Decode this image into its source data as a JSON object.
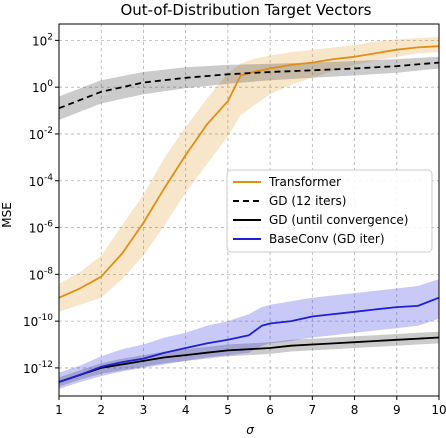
{
  "chart_data": {
    "type": "line",
    "title": "Out-of-Distribution Target Vectors",
    "xlabel": "σ",
    "ylabel": "MSE",
    "xlim": [
      1,
      10
    ],
    "ylim_log10": [
      -13.2,
      2.7
    ],
    "yscale": "log",
    "grid": true,
    "legend_position": "center-right",
    "x_ticks": [
      1,
      2,
      3,
      4,
      5,
      6,
      7,
      8,
      9,
      10
    ],
    "x_tick_labels": [
      "1",
      "2",
      "3",
      "4",
      "5",
      "6",
      "7",
      "8",
      "9",
      "10"
    ],
    "y_ticks_log10": [
      2,
      0,
      -2,
      -4,
      -6,
      -8,
      -10,
      -12
    ],
    "y_tick_labels": [
      {
        "base": "10",
        "exp": "2"
      },
      {
        "base": "10",
        "exp": "0"
      },
      {
        "base": "10",
        "exp": "-2"
      },
      {
        "base": "10",
        "exp": "-4"
      },
      {
        "base": "10",
        "exp": "-6"
      },
      {
        "base": "10",
        "exp": "-8"
      },
      {
        "base": "10",
        "exp": "-10"
      },
      {
        "base": "10",
        "exp": "-12"
      }
    ],
    "series": [
      {
        "name": "Transformer",
        "color": "#e08f12",
        "style": "solid",
        "x": [
          1.0,
          1.5,
          2.0,
          2.5,
          3.0,
          3.5,
          4.0,
          4.5,
          5.0,
          5.3,
          5.6,
          6.0,
          6.5,
          7.0,
          7.5,
          8.0,
          8.5,
          9.0,
          9.5,
          10.0
        ],
        "y_log10": [
          -9.0,
          -8.6,
          -8.1,
          -7.1,
          -5.8,
          -4.3,
          -2.9,
          -1.6,
          -0.6,
          0.5,
          0.65,
          0.8,
          0.95,
          1.05,
          1.2,
          1.3,
          1.45,
          1.6,
          1.7,
          1.75
        ],
        "band_low_log10": [
          -9.6,
          -9.3,
          -9.0,
          -8.2,
          -7.2,
          -5.9,
          -4.5,
          -3.3,
          -2.1,
          -1.2,
          -0.8,
          -0.3,
          0.1,
          0.4,
          0.7,
          0.95,
          1.15,
          1.3,
          1.45,
          1.5
        ],
        "band_high_log10": [
          -8.4,
          -7.9,
          -7.2,
          -5.9,
          -4.6,
          -3.0,
          -1.7,
          -0.5,
          0.6,
          1.0,
          1.2,
          1.35,
          1.5,
          1.6,
          1.7,
          1.8,
          1.95,
          2.05,
          2.1,
          2.15
        ]
      },
      {
        "name": "GD (12 iters)",
        "color": "#000000",
        "style": "dashed",
        "x": [
          1,
          2,
          3,
          4,
          5,
          6,
          7,
          8,
          9,
          10
        ],
        "y_log10": [
          -0.9,
          -0.2,
          0.2,
          0.4,
          0.55,
          0.65,
          0.72,
          0.8,
          0.9,
          1.05
        ],
        "band_low_log10": [
          -1.4,
          -0.7,
          -0.3,
          -0.05,
          0.15,
          0.3,
          0.4,
          0.5,
          0.62,
          0.8
        ],
        "band_high_log10": [
          -0.4,
          0.3,
          0.65,
          0.85,
          0.95,
          1.0,
          1.05,
          1.12,
          1.2,
          1.3
        ]
      },
      {
        "name": "GD (until convergence)",
        "color": "#000000",
        "style": "solid",
        "x": [
          1.0,
          1.5,
          2.0,
          2.5,
          3.0,
          3.5,
          4.0,
          4.5,
          5.0,
          5.5,
          6.0,
          6.5,
          7.0,
          7.5,
          8.0,
          8.5,
          9.0,
          9.5,
          10.0
        ],
        "y_log10": [
          -12.6,
          -12.3,
          -12.0,
          -11.85,
          -11.7,
          -11.55,
          -11.45,
          -11.35,
          -11.25,
          -11.2,
          -11.15,
          -11.05,
          -11.0,
          -10.95,
          -10.9,
          -10.85,
          -10.8,
          -10.75,
          -10.7
        ],
        "band_low_log10": [
          -12.8,
          -12.5,
          -12.25,
          -12.1,
          -11.95,
          -11.8,
          -11.7,
          -11.6,
          -11.5,
          -11.45,
          -11.4,
          -11.3,
          -11.25,
          -11.2,
          -11.15,
          -11.1,
          -11.05,
          -11.0,
          -10.95
        ],
        "band_high_log10": [
          -12.4,
          -12.1,
          -11.8,
          -11.6,
          -11.45,
          -11.3,
          -11.2,
          -11.1,
          -11.0,
          -10.95,
          -10.9,
          -10.8,
          -10.75,
          -10.7,
          -10.65,
          -10.6,
          -10.55,
          -10.5,
          -10.45
        ]
      },
      {
        "name": "BaseConv (GD iter)",
        "color": "#1f1fd6",
        "style": "solid",
        "x": [
          1.0,
          1.5,
          2.0,
          2.5,
          3.0,
          3.5,
          4.0,
          4.5,
          5.0,
          5.5,
          5.8,
          6.0,
          6.5,
          7.0,
          7.5,
          8.0,
          8.5,
          9.0,
          9.5,
          10.0
        ],
        "y_log10": [
          -12.6,
          -12.3,
          -11.95,
          -11.75,
          -11.6,
          -11.35,
          -11.15,
          -10.95,
          -10.8,
          -10.6,
          -10.2,
          -10.1,
          -10.0,
          -9.8,
          -9.7,
          -9.6,
          -9.5,
          -9.4,
          -9.35,
          -9.0
        ],
        "band_low_log10": [
          -12.9,
          -12.6,
          -12.35,
          -12.15,
          -12.0,
          -11.85,
          -11.7,
          -11.55,
          -11.45,
          -11.35,
          -11.05,
          -10.95,
          -10.85,
          -10.7,
          -10.6,
          -10.5,
          -10.4,
          -10.3,
          -10.2,
          -9.9
        ],
        "band_high_log10": [
          -12.2,
          -11.9,
          -11.5,
          -11.2,
          -11.0,
          -10.7,
          -10.5,
          -10.2,
          -10.0,
          -9.7,
          -9.4,
          -9.3,
          -9.15,
          -9.0,
          -8.9,
          -8.8,
          -8.7,
          -8.6,
          -8.5,
          -8.2
        ]
      }
    ]
  }
}
